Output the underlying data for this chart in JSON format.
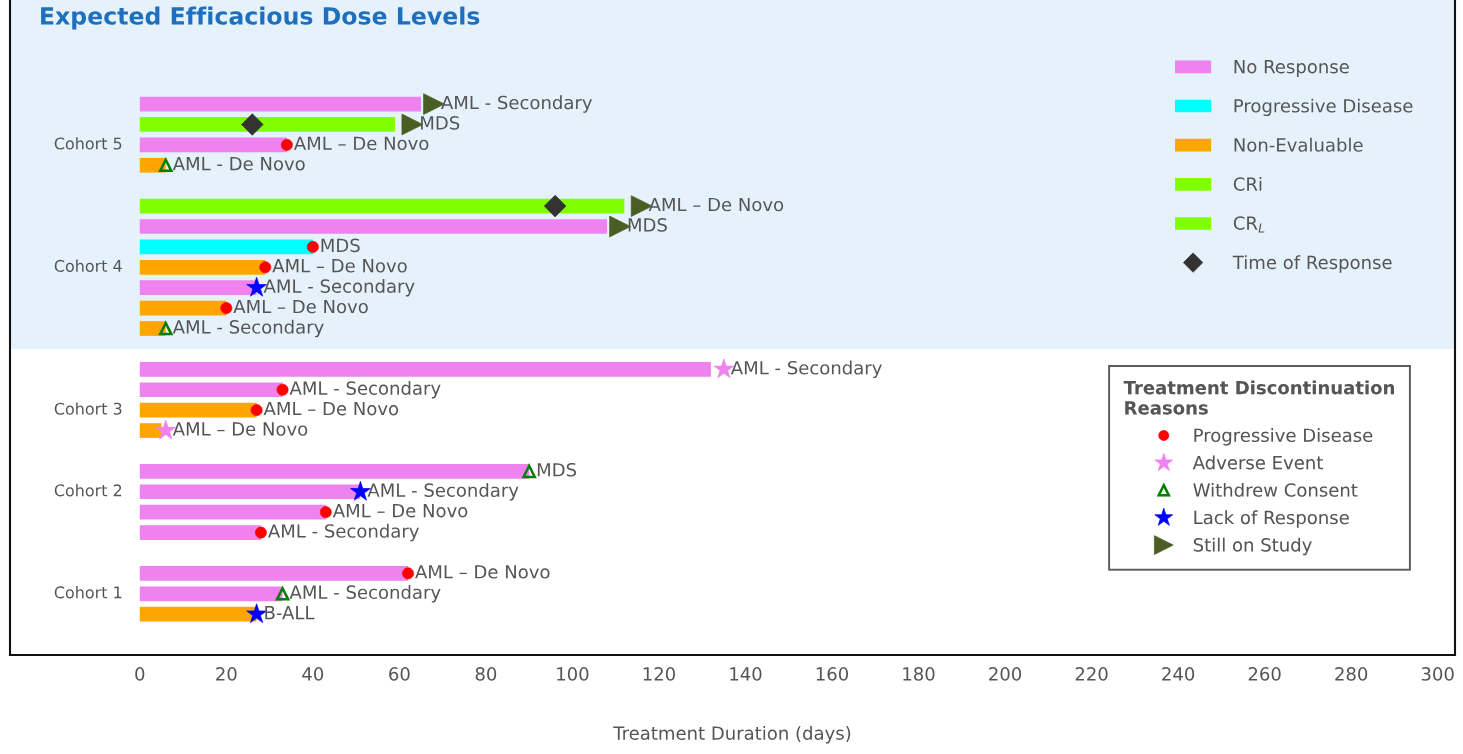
{
  "chart_data": {
    "type": "bar",
    "orientation": "horizontal",
    "xlabel": "Treatment Duration (days)",
    "categories": [
      null,
      null,
      "Cohort 5",
      null,
      null,
      null,
      null,
      null,
      "Cohort 4",
      null,
      null,
      null,
      null,
      null,
      null,
      "Cohort 3",
      null,
      null,
      null,
      "Cohort 2",
      null,
      null,
      null,
      null,
      "Cohort 1",
      null
    ],
    "xlim": [
      -30,
      304
    ],
    "xticks": [
      0,
      20,
      40,
      60,
      80,
      100,
      120,
      140,
      160,
      180,
      200,
      220,
      240,
      260,
      280,
      300
    ],
    "legend": "top right",
    "title": "Expected Efficacious Dose Levels",
    "legend_title": "Treatment Discontinuation Reasons",
    "series": [
      {
        "name": "No Response",
        "color": "#ee82ee",
        "values": [
          65,
          null,
          34,
          null,
          null,
          null,
          108,
          null,
          null,
          27,
          null,
          null,
          null,
          132,
          33,
          null,
          null,
          null,
          90,
          51,
          43,
          28,
          null,
          62,
          33,
          null
        ],
        "value_labels": [
          "AML - Secondary",
          null,
          "AML – De Novo",
          null,
          null,
          null,
          "MDS",
          null,
          null,
          "AML - Secondary",
          null,
          null,
          null,
          "AML - Secondary",
          "AML - Secondary",
          null,
          null,
          null,
          "MDS",
          "AML - Secondary",
          "AML – De Novo",
          "AML - Secondary",
          null,
          "AML – De Novo",
          "AML - Secondary",
          null
        ]
      },
      {
        "name": "Progressive Disease",
        "color": "#00ffff",
        "values": [
          null,
          null,
          null,
          null,
          null,
          null,
          null,
          40,
          null,
          null,
          null,
          null,
          null,
          null,
          null,
          null,
          null,
          null,
          null,
          null,
          null,
          null,
          null,
          null,
          null,
          null
        ],
        "value_labels": [
          null,
          null,
          null,
          null,
          null,
          null,
          null,
          "MDS",
          null,
          null,
          null,
          null,
          null,
          null,
          null,
          null,
          null,
          null,
          null,
          null,
          null,
          null,
          null,
          null,
          null,
          null
        ]
      },
      {
        "name": "Non-Evaluable",
        "color": "#ffa500",
        "values": [
          null,
          null,
          null,
          6,
          null,
          null,
          null,
          null,
          29,
          null,
          20,
          6,
          null,
          null,
          null,
          27,
          5,
          null,
          null,
          null,
          null,
          null,
          null,
          null,
          null,
          27
        ],
        "value_labels": [
          null,
          null,
          null,
          "AML - De Novo",
          null,
          null,
          null,
          null,
          "AML – De Novo",
          null,
          "AML – De Novo",
          "AML - Secondary",
          null,
          null,
          null,
          "AML – De Novo",
          "AML – De Novo",
          null,
          null,
          null,
          null,
          null,
          null,
          null,
          null,
          "B-ALL"
        ]
      },
      {
        "name": "CRi",
        "color": "#80ff00",
        "values": [
          null,
          null,
          null,
          null,
          null,
          112,
          null,
          null,
          null,
          null,
          null,
          null,
          null,
          null,
          null,
          null,
          null,
          null,
          null,
          null,
          null,
          null,
          null,
          null,
          null,
          null
        ],
        "value_labels": [
          null,
          null,
          null,
          null,
          null,
          "AML – De Novo",
          null,
          null,
          null,
          null,
          null,
          null,
          null,
          null,
          null,
          null,
          null,
          null,
          null,
          null,
          null,
          null,
          null,
          null,
          null,
          null
        ]
      },
      {
        "name": "CR$_{L}$",
        "color": "#80ff00",
        "values": [
          null,
          59,
          null,
          null,
          null,
          null,
          null,
          null,
          null,
          null,
          null,
          null,
          null,
          null,
          null,
          null,
          null,
          null,
          null,
          null,
          null,
          null,
          null,
          null,
          null,
          null
        ],
        "value_labels": [
          null,
          "MDS",
          null,
          null,
          null,
          null,
          null,
          null,
          null,
          null,
          null,
          null,
          null,
          null,
          null,
          null,
          null,
          null,
          null,
          null,
          null,
          null,
          null,
          null,
          null,
          null
        ]
      },
      {
        "name": "Time of Response",
        "type": "scatter",
        "color": "#333333",
        "marker": "diamond",
        "values": [
          null,
          26,
          null,
          null,
          null,
          96,
          null,
          null,
          null,
          null,
          null,
          null,
          null,
          null,
          null,
          null,
          null,
          null,
          null,
          null,
          null,
          null,
          null,
          null,
          null,
          null
        ]
      },
      {
        "name": "Progressive Disease",
        "type": "scatter",
        "color": "#ff0000",
        "marker": "circle",
        "values": [
          null,
          null,
          34,
          null,
          null,
          null,
          null,
          40,
          29,
          null,
          20,
          null,
          null,
          null,
          33,
          27,
          null,
          null,
          null,
          null,
          43,
          28,
          null,
          62,
          null,
          null
        ]
      },
      {
        "name": "Adverse Event",
        "type": "scatter",
        "color": "#ee82ee",
        "marker": "star",
        "values": [
          null,
          null,
          null,
          null,
          null,
          null,
          null,
          null,
          null,
          null,
          null,
          null,
          null,
          135,
          null,
          null,
          6,
          null,
          null,
          null,
          null,
          null,
          null,
          null,
          null,
          null
        ]
      },
      {
        "name": "Withdrew Consent",
        "type": "scatter",
        "color": "#008000",
        "marker": "triangle",
        "values": [
          null,
          null,
          null,
          6,
          null,
          null,
          null,
          null,
          null,
          null,
          null,
          6,
          null,
          null,
          null,
          null,
          null,
          null,
          90,
          null,
          null,
          null,
          null,
          null,
          33,
          null
        ]
      },
      {
        "name": "Lack of Response",
        "type": "scatter",
        "color": "#0000ff",
        "marker": "star",
        "values": [
          null,
          null,
          null,
          null,
          null,
          null,
          null,
          null,
          null,
          27,
          null,
          null,
          null,
          null,
          null,
          null,
          null,
          null,
          null,
          51,
          null,
          null,
          null,
          null,
          null,
          27
        ]
      },
      {
        "name": "Still on Study",
        "type": "scatter",
        "color": "#4a5e23",
        "marker": "triangle-right",
        "values": [
          68,
          63,
          null,
          null,
          null,
          116,
          111,
          null,
          null,
          null,
          null,
          null,
          null,
          null,
          null,
          null,
          null,
          null,
          null,
          null,
          null,
          null,
          null,
          null,
          null,
          null
        ]
      }
    ]
  }
}
